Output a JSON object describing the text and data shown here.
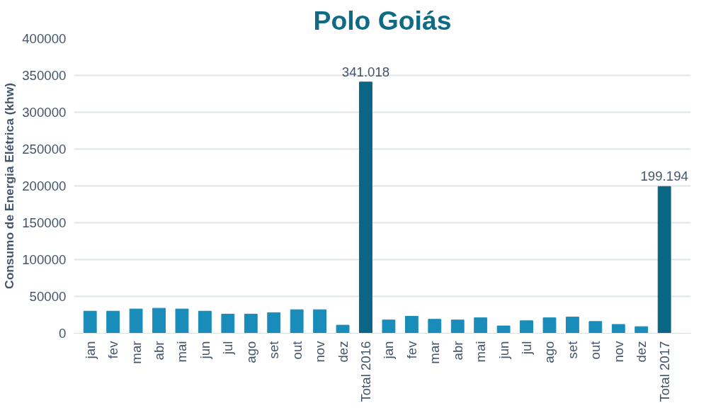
{
  "chart_data": {
    "type": "bar",
    "title": "Polo Goiás",
    "ylabel": "Consumo de Energia Elétrica (khw)",
    "categories": [
      "jan",
      "fev",
      "mar",
      "abr",
      "mai",
      "jun",
      "jul",
      "ago",
      "set",
      "out",
      "nov",
      "dez",
      "Total 2016",
      "jan",
      "fev",
      "mar",
      "abr",
      "mai",
      "jun",
      "jul",
      "ago",
      "set",
      "out",
      "nov",
      "dez",
      "Total 2017"
    ],
    "values": [
      30000,
      30000,
      33000,
      34000,
      33000,
      30000,
      26000,
      26000,
      28000,
      32000,
      32000,
      11000,
      341018,
      18000,
      23000,
      19000,
      18000,
      21000,
      10000,
      17000,
      21000,
      22000,
      16000,
      12000,
      9000,
      199194
    ],
    "colors": [
      "#1a8cba",
      "#1a8cba",
      "#1a8cba",
      "#1a8cba",
      "#1a8cba",
      "#1a8cba",
      "#1a8cba",
      "#1a8cba",
      "#1a8cba",
      "#1a8cba",
      "#1a8cba",
      "#1a8cba",
      "#0b6585",
      "#1a8cba",
      "#1a8cba",
      "#1a8cba",
      "#1a8cba",
      "#1a8cba",
      "#1a8cba",
      "#1a8cba",
      "#1a8cba",
      "#1a8cba",
      "#1a8cba",
      "#1a8cba",
      "#1a8cba",
      "#0b6585"
    ],
    "value_labels": [
      null,
      null,
      null,
      null,
      null,
      null,
      null,
      null,
      null,
      null,
      null,
      null,
      "341.018",
      null,
      null,
      null,
      null,
      null,
      null,
      null,
      null,
      null,
      null,
      null,
      null,
      "199.194"
    ],
    "ylim": [
      0,
      400000
    ],
    "yticks": [
      0,
      50000,
      100000,
      150000,
      200000,
      250000,
      300000,
      350000,
      400000
    ],
    "grid": "y"
  }
}
